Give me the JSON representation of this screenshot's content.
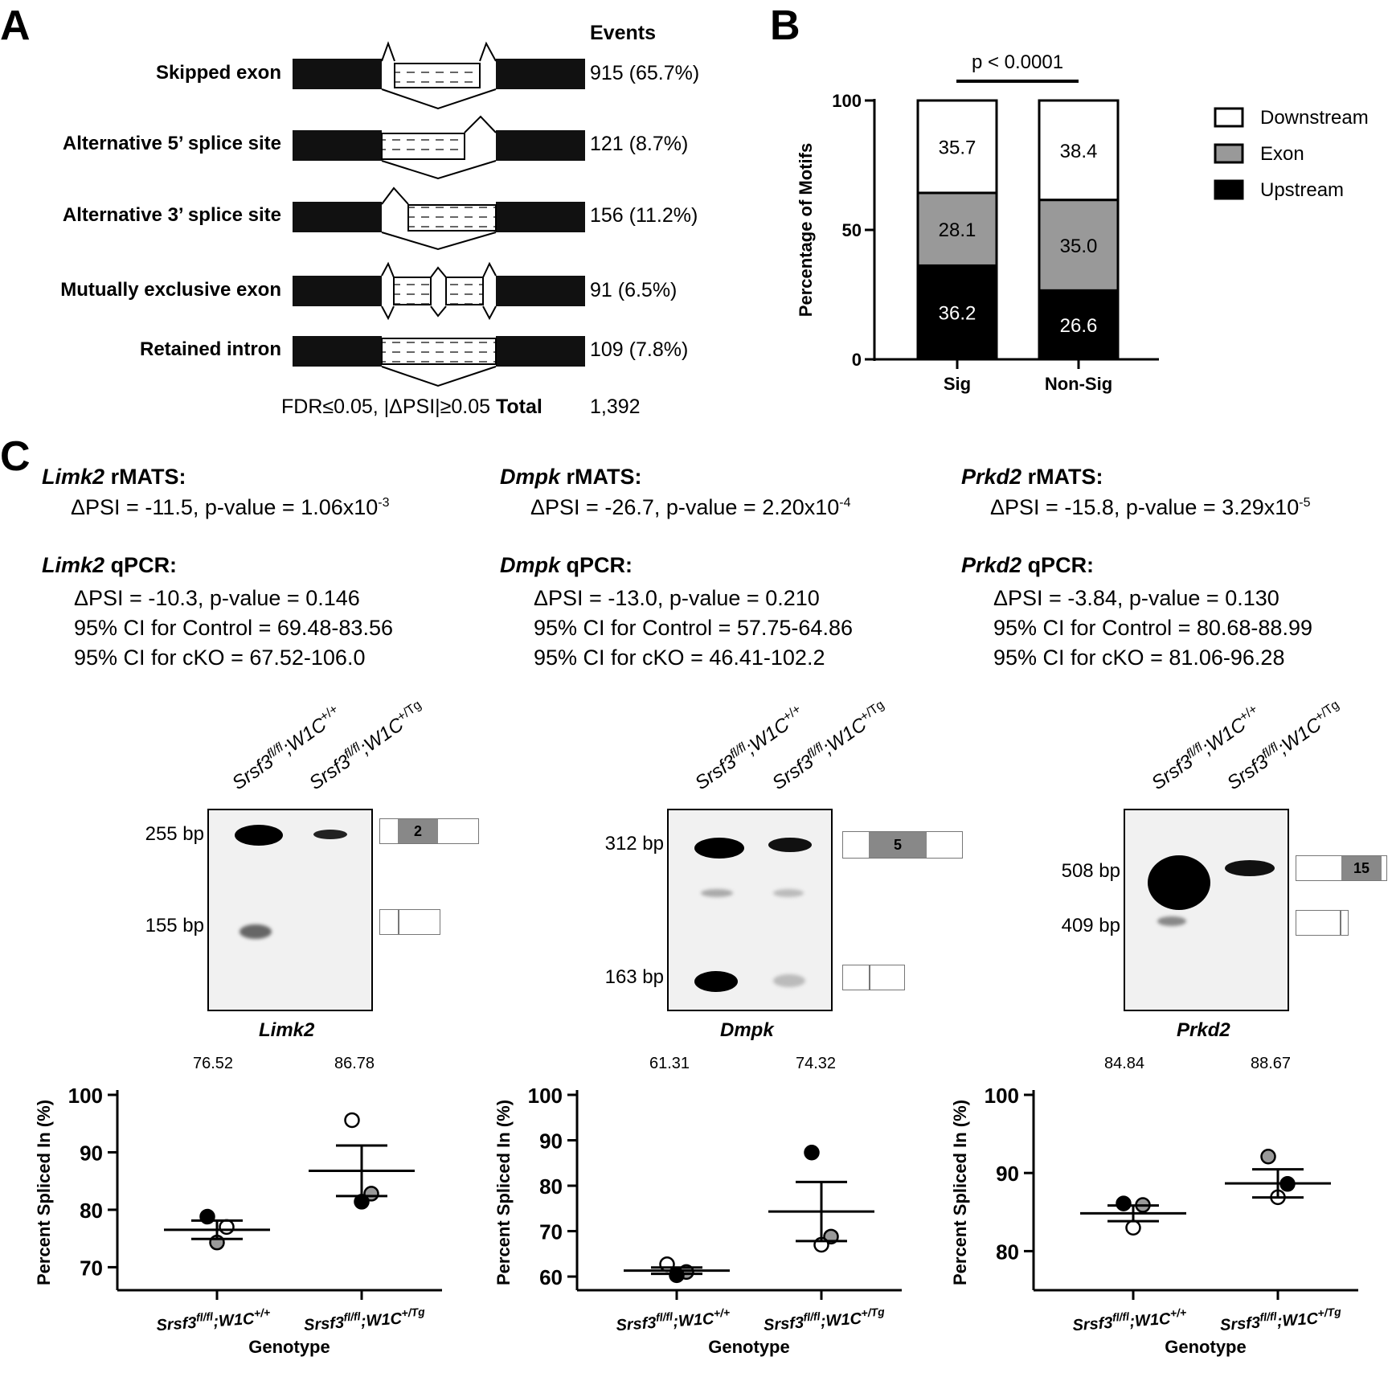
{
  "panelA": {
    "letter": "A",
    "events_header": "Events",
    "events": [
      {
        "label": "Skipped exon",
        "value": "915 (65.7%)"
      },
      {
        "label": "Alternative 5’ splice site",
        "value": "121 (8.7%)"
      },
      {
        "label": "Alternative 3’ splice site",
        "value": "156 (11.2%)"
      },
      {
        "label": "Mutually exclusive exon",
        "value": "91 (6.5%)"
      },
      {
        "label": "Retained intron",
        "value": "109 (7.8%)"
      }
    ],
    "footer_criteria": "FDR≤0.05, |ΔPSI|≥0.05",
    "footer_total_label": "Total",
    "footer_total_value": "1,392"
  },
  "panelB": {
    "letter": "B"
  },
  "panelC": {
    "letter": "C",
    "genes": [
      {
        "gene": "Limk2",
        "rmats_title": "rMATS:",
        "rmats_psi": "ΔPSI = -11.5, p-value = 1.06x10",
        "rmats_exp": "-3",
        "qpcr_title": "qPCR:",
        "qpcr_psi": "ΔPSI = -10.3, p-value = 0.146",
        "ci_control": "95% CI for Control = 69.48-83.56",
        "ci_cko": "95% CI for cKO = 67.52-106.0",
        "band_top": "255 bp",
        "band_bottom": "155 bp",
        "exon": "2",
        "gel_label": "Limk2",
        "mean1": "76.52",
        "mean2": "86.78"
      },
      {
        "gene": "Dmpk",
        "rmats_title": "rMATS:",
        "rmats_psi": "ΔPSI = -26.7, p-value = 2.20x10",
        "rmats_exp": "-4",
        "qpcr_title": "qPCR:",
        "qpcr_psi": "ΔPSI = -13.0, p-value = 0.210",
        "ci_control": "95% CI for Control = 57.75-64.86",
        "ci_cko": "95% CI for cKO = 46.41-102.2",
        "band_top": "312 bp",
        "band_bottom": "163 bp",
        "exon": "5",
        "gel_label": "Dmpk",
        "mean1": "61.31",
        "mean2": "74.32"
      },
      {
        "gene": "Prkd2",
        "rmats_title": "rMATS:",
        "rmats_psi": "ΔPSI = -15.8, p-value = 3.29x10",
        "rmats_exp": "-5",
        "qpcr_title": "qPCR:",
        "qpcr_psi": "ΔPSI = -3.84, p-value = 0.130",
        "ci_control": "95% CI for Control = 80.68-88.99",
        "ci_cko": "95% CI for cKO = 81.06-96.28",
        "band_top": "508 bp",
        "band_bottom": "409 bp",
        "exon": "15",
        "gel_label": "Prkd2",
        "mean1": "84.84",
        "mean2": "88.67"
      }
    ],
    "lanes": {
      "lane1_base": "Srsf3",
      "lane1_sup1": "fl/fl",
      "lane1_mid": ";W1C",
      "lane1_sup2": "+/+",
      "lane2_base": "Srsf3",
      "lane2_sup1": "fl/fl",
      "lane2_mid": ";W1C",
      "lane2_sup2": "+/Tg"
    }
  },
  "chart_data": [
    {
      "type": "bar",
      "stacked": true,
      "title": "",
      "significance_label": "p < 0.0001",
      "categories": [
        "Sig",
        "Non-Sig"
      ],
      "series": [
        {
          "name": "Upstream",
          "color": "#000000",
          "values": [
            36.2,
            26.6
          ]
        },
        {
          "name": "Exon",
          "color": "#999999",
          "values": [
            28.1,
            35.0
          ]
        },
        {
          "name": "Downstream",
          "color": "#ffffff",
          "values": [
            35.7,
            38.4
          ]
        }
      ],
      "ylabel": "Percentage of Motifs",
      "xlabel": "",
      "ylim": [
        0,
        100
      ],
      "yticks": [
        "0",
        "50",
        "100"
      ],
      "legend_order": [
        "Downstream",
        "Exon",
        "Upstream"
      ]
    },
    {
      "type": "scatter",
      "gene": "Limk2",
      "ylabel": "Percent Spliced In (%)",
      "xlabel": "Genotype",
      "categories": [
        "Srsf3fl/fl;W1C+/+",
        "Srsf3fl/fl;W1C+/Tg"
      ],
      "ylim": [
        66,
        100
      ],
      "yticks": [
        "70",
        "80",
        "90",
        "100"
      ],
      "groups": [
        {
          "mean": 76.52,
          "sem": 1.6,
          "points": [
            {
              "y": 78.8,
              "fill": "#000000"
            },
            {
              "y": 77.0,
              "fill": "#ffffff"
            },
            {
              "y": 74.3,
              "fill": "#999999"
            }
          ]
        },
        {
          "mean": 86.78,
          "sem": 4.4,
          "points": [
            {
              "y": 95.6,
              "fill": "#ffffff"
            },
            {
              "y": 82.8,
              "fill": "#999999"
            },
            {
              "y": 81.4,
              "fill": "#000000"
            }
          ]
        }
      ]
    },
    {
      "type": "scatter",
      "gene": "Dmpk",
      "ylabel": "Percent Spliced In (%)",
      "xlabel": "Genotype",
      "categories": [
        "Srsf3fl/fl;W1C+/+",
        "Srsf3fl/fl;W1C+/Tg"
      ],
      "ylim": [
        57,
        100
      ],
      "yticks": [
        "60",
        "70",
        "80",
        "90",
        "100"
      ],
      "groups": [
        {
          "mean": 61.31,
          "sem": 0.7,
          "points": [
            {
              "y": 62.7,
              "fill": "#ffffff"
            },
            {
              "y": 61.0,
              "fill": "#999999"
            },
            {
              "y": 60.3,
              "fill": "#000000"
            }
          ]
        },
        {
          "mean": 74.32,
          "sem": 6.5,
          "points": [
            {
              "y": 87.3,
              "fill": "#000000"
            },
            {
              "y": 68.8,
              "fill": "#999999"
            },
            {
              "y": 67.0,
              "fill": "#ffffff"
            }
          ]
        }
      ]
    },
    {
      "type": "scatter",
      "gene": "Prkd2",
      "ylabel": "Percent Spliced In (%)",
      "xlabel": "Genotype",
      "categories": [
        "Srsf3fl/fl;W1C+/+",
        "Srsf3fl/fl;W1C+/Tg"
      ],
      "ylim": [
        75,
        100
      ],
      "yticks": [
        "80",
        "90",
        "100"
      ],
      "groups": [
        {
          "mean": 84.84,
          "sem": 1.0,
          "points": [
            {
              "y": 86.1,
              "fill": "#000000"
            },
            {
              "y": 85.9,
              "fill": "#999999"
            },
            {
              "y": 83.0,
              "fill": "#ffffff"
            }
          ]
        },
        {
          "mean": 88.67,
          "sem": 1.8,
          "points": [
            {
              "y": 92.1,
              "fill": "#999999"
            },
            {
              "y": 88.6,
              "fill": "#000000"
            },
            {
              "y": 86.9,
              "fill": "#ffffff"
            }
          ]
        }
      ]
    }
  ]
}
